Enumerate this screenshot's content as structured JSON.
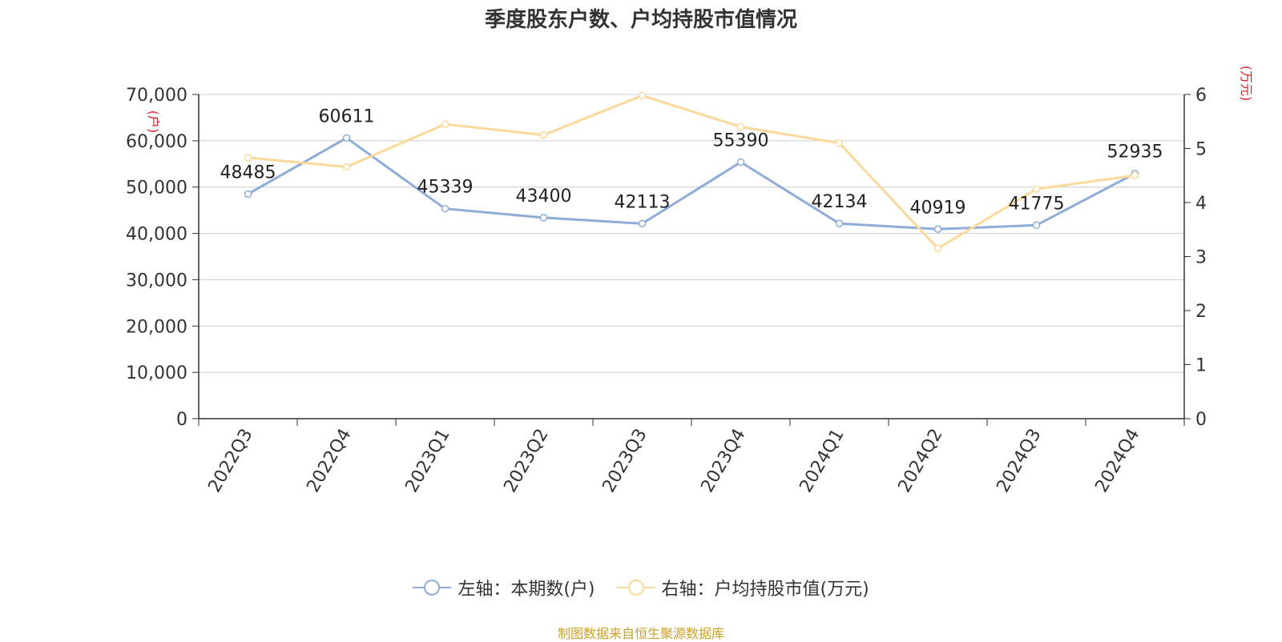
{
  "chart_data": {
    "type": "line",
    "title": "季度股东户数、户均持股市值情况",
    "categories": [
      "2022Q3",
      "2022Q4",
      "2023Q1",
      "2023Q2",
      "2023Q3",
      "2023Q4",
      "2024Q1",
      "2024Q2",
      "2024Q3",
      "2024Q4"
    ],
    "left_axis": {
      "unit": "(户)",
      "range": [
        0,
        70000
      ],
      "ticks": [
        "0",
        "10,000",
        "20,000",
        "30,000",
        "40,000",
        "50,000",
        "60,000",
        "70,000"
      ]
    },
    "right_axis": {
      "unit": "(万元)",
      "range": [
        0,
        6
      ],
      "ticks": [
        "0",
        "1",
        "2",
        "3",
        "4",
        "5",
        "6"
      ]
    },
    "series": [
      {
        "name": "左轴：本期数(户)",
        "axis": "left",
        "color": "#8eacd8",
        "values": [
          48485,
          60611,
          45339,
          43400,
          42113,
          55390,
          42134,
          40919,
          41775,
          52935
        ],
        "labels": [
          "48485",
          "60611",
          "45339",
          "43400",
          "42113",
          "55390",
          "42134",
          "40919",
          "41775",
          "52935"
        ]
      },
      {
        "name": "右轴：户均持股市值(万元)",
        "axis": "right",
        "color": "#fad99a",
        "values": [
          4.83,
          4.66,
          5.45,
          5.25,
          5.98,
          5.4,
          5.1,
          3.15,
          4.25,
          4.5
        ]
      }
    ],
    "grid": true,
    "legend_position": "bottom"
  },
  "source_note": "制图数据来自恒生聚源数据库",
  "colors": {
    "left_axis_unit": "#e02020",
    "right_axis_unit": "#e02020",
    "grid": "#cccccc",
    "axis": "#333333"
  }
}
